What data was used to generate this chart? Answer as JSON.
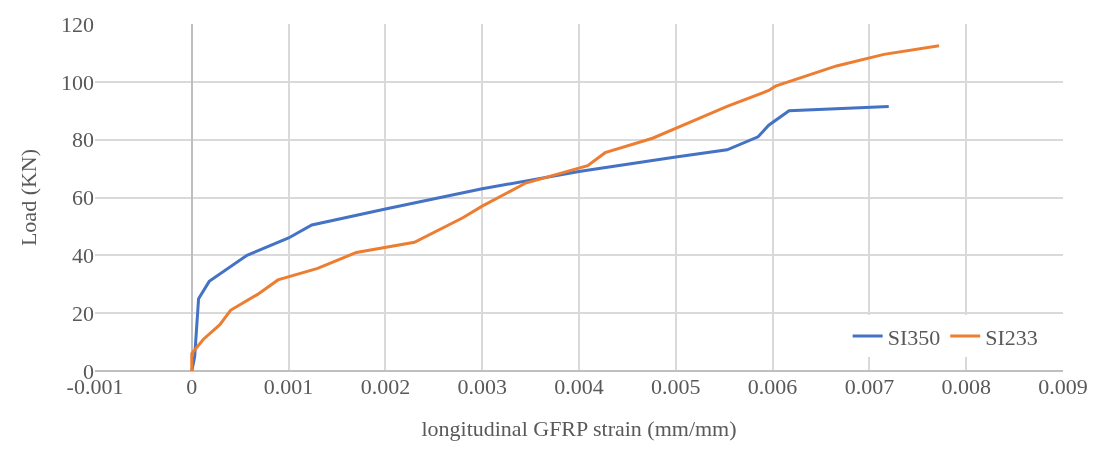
{
  "chart_data": {
    "type": "line",
    "xlabel": "longitudinal GFRP strain (mm/mm)",
    "ylabel": "Load (KN)",
    "xlim": [
      -0.001,
      0.009
    ],
    "xticks": [
      -0.001,
      0,
      0.001,
      0.002,
      0.003,
      0.004,
      0.005,
      0.006,
      0.007,
      0.008,
      0.009
    ],
    "ylim": [
      0,
      120
    ],
    "yticks": [
      0,
      20,
      40,
      60,
      80,
      100,
      120
    ],
    "grid": true,
    "legend": "bottom right",
    "marker": "none",
    "line_style": "solid",
    "series": [
      {
        "name": "SI350",
        "color": "#4472c4",
        "x": [
          0,
          3e-05,
          5e-05,
          7e-05,
          0.00018,
          0.00057,
          0.001,
          0.00124,
          0.002,
          0.003,
          0.004,
          0.005,
          0.00553,
          0.00585,
          0.00596,
          0.00617,
          0.0072
        ],
        "values": [
          0,
          5,
          15,
          25,
          31,
          40,
          46,
          50.5,
          56,
          63,
          69,
          74,
          76.5,
          81,
          85,
          90,
          91.5
        ]
      },
      {
        "name": "SI233",
        "color": "#ed7d31",
        "x": [
          0,
          0,
          0.00012,
          0.00029,
          0.0004,
          0.00068,
          0.00089,
          0.0013,
          0.0017,
          0.0023,
          0.0028,
          0.003,
          0.00345,
          0.00409,
          0.00427,
          0.00476,
          0.00518,
          0.00553,
          0.00596,
          0.00603,
          0.00666,
          0.00715,
          0.00772
        ],
        "values": [
          0,
          6,
          11,
          16,
          21,
          26.5,
          31.5,
          35.5,
          41,
          44.5,
          53,
          57,
          65,
          71,
          75.5,
          80.5,
          86.5,
          91.5,
          97,
          98.5,
          105.5,
          109.5,
          112.5
        ]
      }
    ]
  }
}
